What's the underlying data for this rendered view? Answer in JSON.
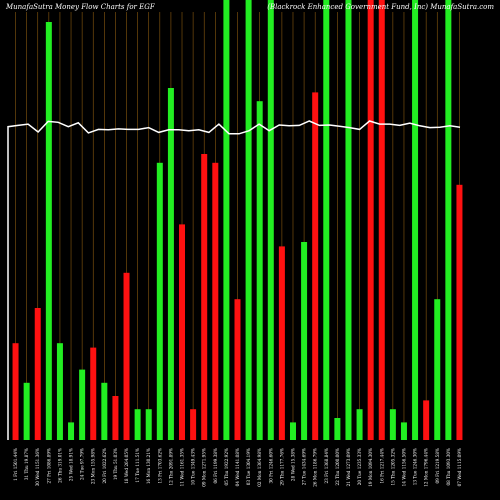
{
  "chart_data": {
    "type": "bar",
    "title": "MunafaSutra  Money Flow  Charts for EGF",
    "subtitle": "(Blackrock Enhanced Government Fund, Inc) MunafaSutra.com",
    "colors": {
      "background": "#000000",
      "up": "#22ee22",
      "down": "#ff1111",
      "grid": "#8a5a10",
      "line": "#ffffff",
      "text": "#ffffff"
    },
    "grid": true,
    "ylim": [
      0,
      100
    ],
    "bars": [
      {
        "label": "1 Fri 1501.44%",
        "value": 22,
        "dir": "down"
      },
      {
        "label": "31 Thu 19.87%",
        "value": 13,
        "dir": "up"
      },
      {
        "label": "30 Wed 1151.36%",
        "value": 30,
        "dir": "down"
      },
      {
        "label": "27 Fri 1086.89%",
        "value": 95,
        "dir": "up"
      },
      {
        "label": "26 Thu 319.01%",
        "value": 22,
        "dir": "up"
      },
      {
        "label": "25 Wed 18.91%",
        "value": 4,
        "dir": "up"
      },
      {
        "label": "24 Tue 97.79%",
        "value": 16,
        "dir": "up"
      },
      {
        "label": "23 Mon 155.98%",
        "value": 21,
        "dir": "down"
      },
      {
        "label": "20 Fri 1022.62%",
        "value": 13,
        "dir": "up"
      },
      {
        "label": "19 Thu 51.03%",
        "value": 10,
        "dir": "down"
      },
      {
        "label": "18 Wed 264.05%",
        "value": 38,
        "dir": "down"
      },
      {
        "label": "17 Tue 111.51%",
        "value": 7,
        "dir": "up"
      },
      {
        "label": "16 Mon 130.21%",
        "value": 7,
        "dir": "up"
      },
      {
        "label": "13 Fri 1703.62%",
        "value": 63,
        "dir": "up"
      },
      {
        "label": "12 Thu 2091.89%",
        "value": 80,
        "dir": "up"
      },
      {
        "label": "11 Wed 1161.35%",
        "value": 49,
        "dir": "down"
      },
      {
        "label": "10 Tue 1349.43%",
        "value": 7,
        "dir": "down"
      },
      {
        "label": "09 Mon 1271.95%",
        "value": 65,
        "dir": "down"
      },
      {
        "label": "06 Fri 1199.38%",
        "value": 63,
        "dir": "down"
      },
      {
        "label": "05 Thu 1922.92%",
        "value": 100,
        "dir": "up"
      },
      {
        "label": "04 Wed 1141.08%",
        "value": 32,
        "dir": "down"
      },
      {
        "label": "03 Tue 1304.19%",
        "value": 100,
        "dir": "up"
      },
      {
        "label": "02 Mon 1364.98%",
        "value": 77,
        "dir": "up"
      },
      {
        "label": "30 Fri 1246.60%",
        "value": 100,
        "dir": "up"
      },
      {
        "label": "29 Thu 1177.76%",
        "value": 44,
        "dir": "down"
      },
      {
        "label": "28 Wed 15.38%",
        "value": 4,
        "dir": "up"
      },
      {
        "label": "27 Tue 1434.69%",
        "value": 45,
        "dir": "up"
      },
      {
        "label": "26 Mon 1186.79%",
        "value": 79,
        "dir": "down"
      },
      {
        "label": "23 Fri 1368.84%",
        "value": 100,
        "dir": "up"
      },
      {
        "label": "22 Thu 1200.00%",
        "value": 5,
        "dir": "up"
      },
      {
        "label": "21 Wed 1273.09%",
        "value": 100,
        "dir": "up"
      },
      {
        "label": "20 Tue 1235.33%",
        "value": 7,
        "dir": "up"
      },
      {
        "label": "19 Mon 1094.30%",
        "value": 100,
        "dir": "down"
      },
      {
        "label": "16 Fri 1217.44%",
        "value": 100,
        "dir": "down"
      },
      {
        "label": "15 Thu 1205.32%",
        "value": 7,
        "dir": "up"
      },
      {
        "label": "14 Wed 1156.50%",
        "value": 4,
        "dir": "up"
      },
      {
        "label": "13 Tue 1246.30%",
        "value": 100,
        "dir": "up"
      },
      {
        "label": "12 Mon 1796.44%",
        "value": 9,
        "dir": "down"
      },
      {
        "label": "09 Fri 1219.58%",
        "value": 32,
        "dir": "up"
      },
      {
        "label": "08 Thu 1093.30%",
        "value": 100,
        "dir": "up"
      },
      {
        "label": "07 Wed 1115.09%",
        "value": 58,
        "dir": "down"
      }
    ],
    "price_line": [
      71.2,
      71.5,
      71.8,
      70.0,
      72.4,
      72.2,
      71.2,
      72.1,
      69.8,
      70.6,
      70.5,
      70.7,
      70.6,
      70.6,
      71.0,
      69.9,
      70.5,
      70.5,
      70.3,
      70.5,
      69.9,
      71.8,
      69.6,
      69.6,
      70.3,
      71.8,
      70.3,
      71.6,
      71.4,
      71.5,
      72.5,
      71.5,
      71.6,
      71.3,
      71.0,
      70.6,
      72.5,
      71.8,
      71.8,
      71.5,
      72.0,
      71.4,
      71.0,
      71.1,
      71.4,
      71.1
    ]
  }
}
